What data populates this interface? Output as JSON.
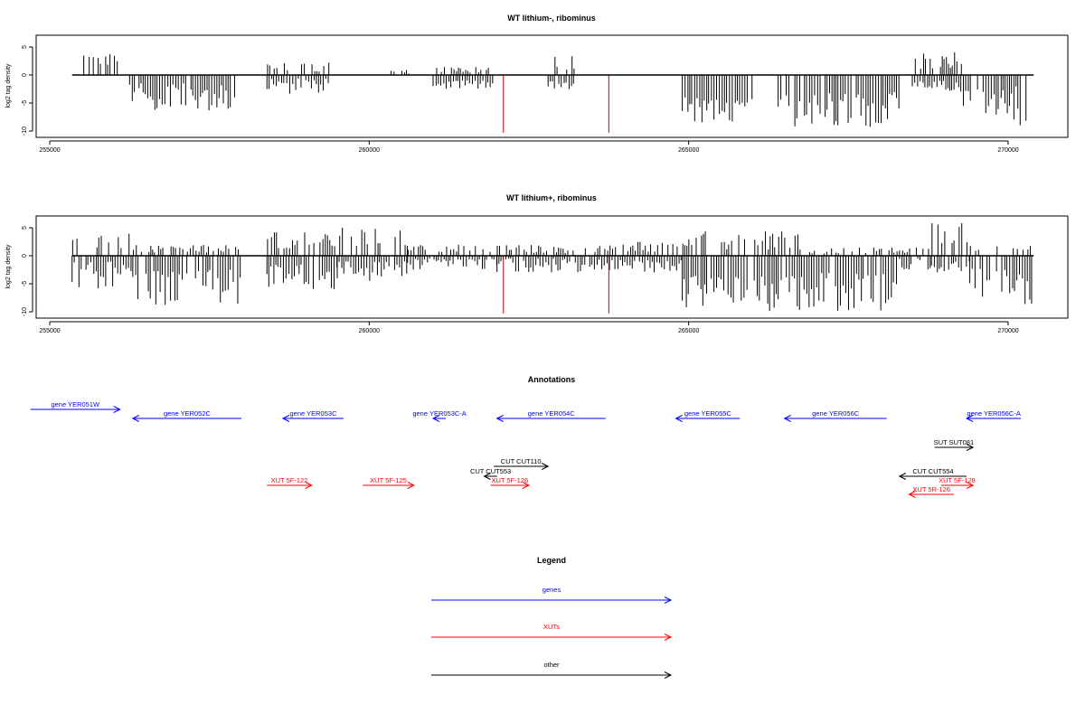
{
  "chart_data": [
    {
      "type": "bar",
      "title": "WT lithium-, ribominus",
      "xlabel": "",
      "ylabel": "log2 tag density",
      "xlim": [
        255000,
        270500
      ],
      "ylim": [
        -10.5,
        7
      ],
      "xticks": [
        255000,
        260000,
        265000,
        270000
      ],
      "yticks": [
        5,
        0,
        -5,
        -10
      ],
      "grid": false,
      "series": [
        {
          "color": "#000000",
          "segments": [
            {
              "start": 255400,
              "end": 256100,
              "pos": [
                0,
                3.8
              ],
              "neg": [
                0,
                0
              ]
            },
            {
              "start": 256250,
              "end": 257900,
              "pos": [
                0,
                0
              ],
              "neg": [
                -6.5,
                -1.5
              ]
            },
            {
              "start": 258400,
              "end": 259400,
              "pos": [
                0,
                2.2
              ],
              "neg": [
                -3.5,
                -0.5
              ]
            },
            {
              "start": 260300,
              "end": 260700,
              "pos": [
                0,
                1.0
              ],
              "neg": [
                0,
                0
              ]
            },
            {
              "start": 261000,
              "end": 262000,
              "pos": [
                0,
                1.5
              ],
              "neg": [
                -2.5,
                -1.0
              ]
            },
            {
              "start": 262800,
              "end": 263200,
              "pos": [
                0,
                3.5
              ],
              "neg": [
                -3.0,
                -1.0
              ]
            },
            {
              "start": 264900,
              "end": 266000,
              "pos": [
                0,
                0
              ],
              "neg": [
                -9.0,
                -4.0
              ]
            },
            {
              "start": 266400,
              "end": 268300,
              "pos": [
                0,
                0
              ],
              "neg": [
                -9.5,
                -3.0
              ]
            },
            {
              "start": 268500,
              "end": 269300,
              "pos": [
                0,
                4.2
              ],
              "neg": [
                -3.0,
                -1.0
              ]
            },
            {
              "start": 269300,
              "end": 270300,
              "pos": [
                0,
                0
              ],
              "neg": [
                -9.0,
                -2.0
              ]
            }
          ]
        },
        {
          "color": "#cc0000",
          "spikes": [
            {
              "x": 262100,
              "y": -10.3
            },
            {
              "x": 263750,
              "y": -10.3
            }
          ]
        }
      ]
    },
    {
      "type": "bar",
      "title": "WT lithium+, ribominus",
      "xlabel": "",
      "ylabel": "log2 tag density",
      "xlim": [
        255000,
        270500
      ],
      "ylim": [
        -10.5,
        7
      ],
      "xticks": [
        255000,
        260000,
        265000,
        270000
      ],
      "yticks": [
        5,
        0,
        -5,
        -10
      ],
      "grid": false,
      "series": [
        {
          "color": "#000000",
          "segments": [
            {
              "start": 255350,
              "end": 256300,
              "pos": [
                0,
                4.5
              ],
              "neg": [
                -6.0,
                -1.0
              ]
            },
            {
              "start": 256300,
              "end": 258000,
              "pos": [
                0,
                2.0
              ],
              "neg": [
                -9.0,
                -2.5
              ]
            },
            {
              "start": 258400,
              "end": 259500,
              "pos": [
                0,
                5.0
              ],
              "neg": [
                -6.0,
                -1.5
              ]
            },
            {
              "start": 259500,
              "end": 260600,
              "pos": [
                0,
                5.0
              ],
              "neg": [
                -4.5,
                -1.0
              ]
            },
            {
              "start": 260600,
              "end": 262000,
              "pos": [
                0,
                2.0
              ],
              "neg": [
                -2.5,
                -0.5
              ]
            },
            {
              "start": 262000,
              "end": 263800,
              "pos": [
                0,
                2.0
              ],
              "neg": [
                -3.0,
                -0.5
              ]
            },
            {
              "start": 263800,
              "end": 264900,
              "pos": [
                0,
                2.5
              ],
              "neg": [
                -3.0,
                -0.8
              ]
            },
            {
              "start": 264900,
              "end": 266700,
              "pos": [
                0,
                4.5
              ],
              "neg": [
                -10.0,
                -3.5
              ]
            },
            {
              "start": 266700,
              "end": 268300,
              "pos": [
                0,
                1.5
              ],
              "neg": [
                -10.0,
                -3.0
              ]
            },
            {
              "start": 268300,
              "end": 268800,
              "pos": [
                0,
                1.5
              ],
              "neg": [
                -2.5,
                -0.5
              ]
            },
            {
              "start": 268800,
              "end": 269400,
              "pos": [
                0,
                6.5
              ],
              "neg": [
                -3.0,
                -1.0
              ]
            },
            {
              "start": 269400,
              "end": 270400,
              "pos": [
                0,
                2.0
              ],
              "neg": [
                -9.0,
                -2.0
              ]
            }
          ]
        },
        {
          "color": "#cc0000",
          "spikes": [
            {
              "x": 262100,
              "y": -10.3
            },
            {
              "x": 263750,
              "y": -10.3
            }
          ]
        }
      ]
    }
  ],
  "annotations": {
    "title": "Annotations",
    "items": [
      {
        "label": "gene YER051W",
        "color": "#0000ff",
        "start": 254700,
        "end": 256100,
        "strand": "+",
        "row": 0
      },
      {
        "label": "gene YER052C",
        "color": "#0000ff",
        "start": 256300,
        "end": 258000,
        "strand": "-",
        "row": 1
      },
      {
        "label": "gene YER053C",
        "color": "#0000ff",
        "start": 258650,
        "end": 259600,
        "strand": "-",
        "row": 1
      },
      {
        "label": "gene YER053C-A",
        "color": "#0000ff",
        "start": 261000,
        "end": 261200,
        "strand": "-",
        "row": 1
      },
      {
        "label": "gene YER054C",
        "color": "#0000ff",
        "start": 262000,
        "end": 263700,
        "strand": "-",
        "row": 1
      },
      {
        "label": "gene YER055C",
        "color": "#0000ff",
        "start": 264800,
        "end": 265800,
        "strand": "-",
        "row": 1
      },
      {
        "label": "gene YER056C",
        "color": "#0000ff",
        "start": 266500,
        "end": 268100,
        "strand": "-",
        "row": 1
      },
      {
        "label": "gene YER056C-A",
        "color": "#0000ff",
        "start": 269350,
        "end": 270200,
        "strand": "-",
        "row": 1
      },
      {
        "label": "SUT SUT081",
        "color": "#000000",
        "start": 268850,
        "end": 269450,
        "strand": "+",
        "row": 2
      },
      {
        "label": "CUT CUT110",
        "color": "#000000",
        "start": 261950,
        "end": 262800,
        "strand": "+",
        "row": 3
      },
      {
        "label": "CUT CUT553",
        "color": "#000000",
        "start": 261800,
        "end": 262000,
        "strand": "-",
        "row": 4
      },
      {
        "label": "CUT CUT554",
        "color": "#000000",
        "start": 268300,
        "end": 269350,
        "strand": "-",
        "row": 4
      },
      {
        "label": "XUT 5F-122",
        "color": "#ff0000",
        "start": 258400,
        "end": 259100,
        "strand": "+",
        "row": 5
      },
      {
        "label": "XUT 5F-125",
        "color": "#ff0000",
        "start": 259900,
        "end": 260700,
        "strand": "+",
        "row": 5
      },
      {
        "label": "XUT 5F-126",
        "color": "#ff0000",
        "start": 261900,
        "end": 262500,
        "strand": "+",
        "row": 5
      },
      {
        "label": "XUT 5F-128",
        "color": "#ff0000",
        "start": 268950,
        "end": 269450,
        "strand": "+",
        "row": 5
      },
      {
        "label": "XUT 5R-126",
        "color": "#ff0000",
        "start": 268450,
        "end": 269150,
        "strand": "-",
        "row": 6
      }
    ]
  },
  "legend": {
    "title": "Legend",
    "items": [
      {
        "label": "genes",
        "color": "#0000ff"
      },
      {
        "label": "XUTs",
        "color": "#ff0000"
      },
      {
        "label": "other",
        "color": "#000000"
      }
    ]
  }
}
